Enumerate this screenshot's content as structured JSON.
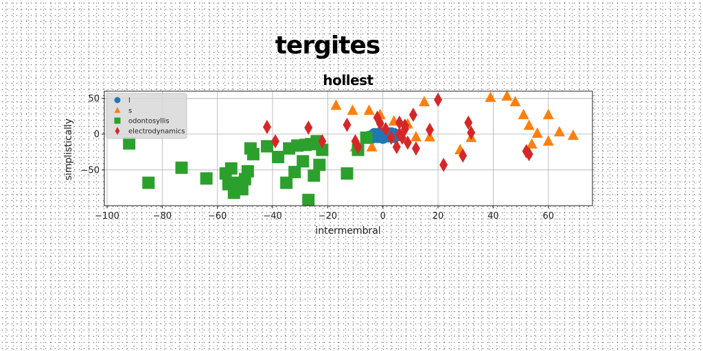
{
  "chart_data": {
    "type": "scatter",
    "title": "tergites",
    "subtitle": "hollest",
    "xlabel": "intermembral",
    "ylabel": "simplistically",
    "xlim": [
      -101,
      76
    ],
    "ylim": [
      -100,
      60
    ],
    "xticks": [
      -100,
      -80,
      -60,
      -40,
      -20,
      0,
      20,
      40,
      60
    ],
    "yticks": [
      -50,
      0,
      50
    ],
    "grid": true,
    "legend_position": "top-left",
    "series": [
      {
        "name": "l",
        "marker": "circle",
        "color": "#1f77b4",
        "x": [
          -5,
          -4,
          -3,
          -2,
          -1,
          0,
          1,
          2,
          3,
          4,
          5,
          -4,
          -2,
          0,
          2,
          4,
          -3,
          -1,
          1,
          3
        ],
        "y": [
          -4,
          -3,
          -2,
          -1,
          -2,
          -3,
          -1,
          -2,
          -1,
          0,
          -2,
          -5,
          -4,
          -5,
          -3,
          -4,
          0,
          1,
          0,
          1
        ]
      },
      {
        "name": "s",
        "marker": "triangle",
        "color": "#ff7f0e",
        "x": [
          -17,
          -11,
          -5,
          -1,
          4,
          9,
          12,
          15,
          17,
          28,
          32,
          39,
          45,
          48,
          51,
          53,
          54,
          56,
          60,
          60,
          64,
          69,
          -4,
          -10
        ],
        "y": [
          40,
          33,
          33,
          27,
          18,
          14,
          -4,
          45,
          -4,
          -22,
          -5,
          51,
          53,
          45,
          27,
          12,
          -14,
          1,
          27,
          -10,
          3,
          -2,
          -18,
          -18
        ]
      },
      {
        "name": "odontosyllis",
        "marker": "square",
        "color": "#2ca02c",
        "x": [
          -92,
          -85,
          -73,
          -64,
          -57,
          -56,
          -54,
          -53,
          -51,
          -49,
          -48,
          -47,
          -42,
          -38,
          -35,
          -34,
          -32,
          -31,
          -29,
          -28,
          -27,
          -26,
          -25,
          -24,
          -23,
          -22,
          -13,
          -9,
          -6,
          -55,
          -50
        ],
        "y": [
          -13,
          -68,
          -47,
          -62,
          -55,
          -70,
          -82,
          -68,
          -77,
          -52,
          -20,
          -28,
          -17,
          -32,
          -68,
          -20,
          -53,
          -16,
          -38,
          -15,
          -92,
          -14,
          -58,
          -10,
          -43,
          -22,
          -55,
          -22,
          -5,
          -48,
          -63
        ]
      },
      {
        "name": "electrodynamics",
        "marker": "diamond",
        "color": "#d62728",
        "x": [
          -42,
          -39,
          -27,
          -22,
          -13,
          -10,
          -9,
          -2,
          -1,
          1,
          3,
          5,
          6,
          7,
          8,
          9,
          11,
          12,
          17,
          20,
          22,
          29,
          31,
          32,
          52,
          53,
          6,
          8
        ],
        "y": [
          10,
          -10,
          9,
          -10,
          13,
          -10,
          -18,
          23,
          15,
          7,
          -5,
          -18,
          16,
          -5,
          7,
          -12,
          27,
          -20,
          6,
          48,
          -43,
          -30,
          16,
          2,
          -24,
          -28,
          0,
          12
        ]
      }
    ]
  }
}
